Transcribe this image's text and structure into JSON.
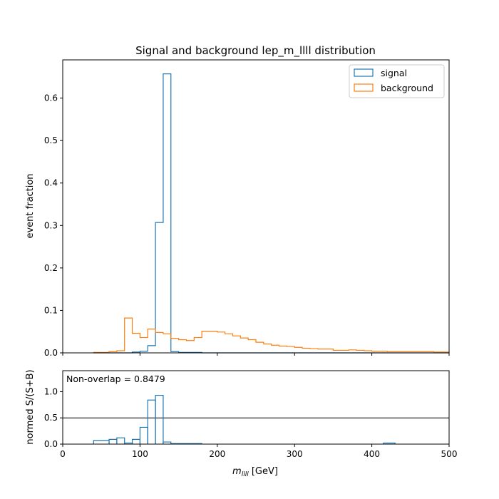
{
  "chart_data": [
    {
      "type": "line",
      "drawstyle": "step-histogram",
      "title": "Signal and background lep_m_llll distribution",
      "xlabel": "",
      "ylabel": "event fraction",
      "xlim": [
        0,
        500
      ],
      "ylim": [
        0,
        0.69
      ],
      "yticks": [
        "0.0",
        "0.1",
        "0.2",
        "0.3",
        "0.4",
        "0.5",
        "0.6"
      ],
      "xticks": [
        0,
        100,
        200,
        300,
        400,
        500
      ],
      "grid": false,
      "legend": "top-right",
      "bin_width": 10,
      "bin_start": 40,
      "series": [
        {
          "name": "signal",
          "color": "#1f77b4",
          "values": [
            0,
            0,
            0,
            0,
            0,
            0.002,
            0.004,
            0.017,
            0.307,
            0.657,
            0.003,
            0.001,
            0.001,
            0.001,
            0,
            0,
            0,
            0,
            0,
            0,
            0,
            0,
            0,
            0,
            0,
            0,
            0,
            0,
            0,
            0,
            0,
            0,
            0,
            0,
            0,
            0,
            0,
            0,
            0,
            0,
            0,
            0,
            0,
            0,
            0,
            0
          ]
        },
        {
          "name": "background",
          "color": "#ff7f0e",
          "values": [
            0.001,
            0.001,
            0.003,
            0.005,
            0.082,
            0.046,
            0.036,
            0.056,
            0.048,
            0.045,
            0.034,
            0.031,
            0.029,
            0.036,
            0.051,
            0.051,
            0.049,
            0.045,
            0.04,
            0.035,
            0.031,
            0.025,
            0.021,
            0.018,
            0.016,
            0.015,
            0.013,
            0.011,
            0.01,
            0.009,
            0.009,
            0.006,
            0.006,
            0.007,
            0.006,
            0.005,
            0.004,
            0.004,
            0.003,
            0.003,
            0.003,
            0.003,
            0.003,
            0.003,
            0.002,
            0.002
          ]
        }
      ]
    },
    {
      "type": "line",
      "drawstyle": "step-histogram",
      "title": "",
      "xlabel": "m_llll [GeV]",
      "ylabel": "normed S/(S+B)",
      "xlim": [
        0,
        500
      ],
      "ylim": [
        0,
        1.4
      ],
      "yticks": [
        "0.0",
        "0.5",
        "1.0"
      ],
      "xticks": [
        "0",
        "100",
        "200",
        "300",
        "400",
        "500"
      ],
      "grid": false,
      "hline": 0.5,
      "annotation": "Non-overlap = 0.8479",
      "series": [
        {
          "color": "#1f77b4",
          "bins": [
            [
              40,
              60,
              0.07
            ],
            [
              60,
              70,
              0.09
            ],
            [
              70,
              80,
              0.12
            ],
            [
              80,
              90,
              0.02
            ],
            [
              90,
              100,
              0.09
            ],
            [
              100,
              110,
              0.32
            ],
            [
              110,
              120,
              0.84
            ],
            [
              120,
              130,
              0.93
            ],
            [
              130,
              140,
              0.04
            ],
            [
              140,
              150,
              0.01
            ],
            [
              150,
              180,
              0.01
            ],
            [
              415,
              430,
              0.02
            ]
          ]
        }
      ]
    }
  ]
}
